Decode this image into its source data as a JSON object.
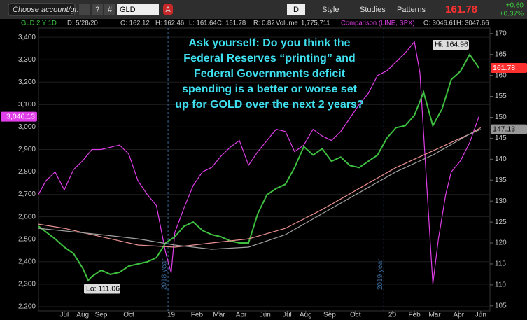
{
  "toolbar": {
    "account": "Choose account/gr...",
    "help": "?",
    "hash": "#",
    "symbol": "GLD",
    "alert": "A",
    "period": "D",
    "style": "Style",
    "studies": "Studies",
    "patterns": "Patterns",
    "last": "161.78",
    "change": "+0.60",
    "change_pct": "+0.37%"
  },
  "info_bar": [
    "GLD 2 Y 1D",
    "D: 5/28/20",
    "O: 162.12",
    "H: 162.46",
    "L: 161.64",
    "C: 161.78",
    "R: 0.82",
    "Volume",
    "1,775,711",
    "Comparison (LINE, SPX)",
    "O: 3046.61",
    "H: 3047.66"
  ],
  "chart_data": {
    "type": "line",
    "annotation": [
      "Ask yourself: Do you think the",
      "Federal Reserves “printing” and",
      "Federal Governments deficit",
      "spending is a better or worse set",
      "up for GOLD over the next 2 years?"
    ],
    "hi_label": "Hi: 164.96",
    "lo_label": "Lo: 111.06",
    "last_tag": "161.78",
    "ma_tag": "147.13",
    "spx_tag": "3,046.13",
    "year_lines": [
      {
        "x": 5.63,
        "label": "2018 year"
      },
      {
        "x": 17.34,
        "label": "2019 year"
      }
    ],
    "xlim": [
      -1.4,
      23.1
    ],
    "xticks": [
      {
        "value": 0,
        "label": "Jul"
      },
      {
        "value": 1,
        "label": "Aug"
      },
      {
        "value": 2,
        "label": "Sep"
      },
      {
        "value": 3.5,
        "label": "Oct"
      },
      {
        "value": 5.8,
        "label": "19"
      },
      {
        "value": 7.2,
        "label": "Feb"
      },
      {
        "value": 8.4,
        "label": "Mar"
      },
      {
        "value": 9.6,
        "label": "Apr"
      },
      {
        "value": 10.9,
        "label": "Jun"
      },
      {
        "value": 12.1,
        "label": "Jul"
      },
      {
        "value": 13.1,
        "label": "Aug"
      },
      {
        "value": 14.4,
        "label": "Sep"
      },
      {
        "value": 15.8,
        "label": "Oct"
      },
      {
        "value": 17.8,
        "label": "20"
      },
      {
        "value": 19,
        "label": "Feb"
      },
      {
        "value": 20.1,
        "label": "Mar"
      },
      {
        "value": 21.4,
        "label": "Apr"
      },
      {
        "value": 22.6,
        "label": "Jun"
      }
    ],
    "ylim": [
      2181,
      3441
    ],
    "yticks": [
      {
        "value": 2200,
        "label": "2,200"
      },
      {
        "value": 2300,
        "label": "2,300"
      },
      {
        "value": 2400,
        "label": "2,400"
      },
      {
        "value": 2500,
        "label": "2,500"
      },
      {
        "value": 2600,
        "label": "2,600"
      },
      {
        "value": 2700,
        "label": "2,700"
      },
      {
        "value": 2800,
        "label": "2,800"
      },
      {
        "value": 2900,
        "label": "2,900"
      },
      {
        "value": 3000,
        "label": "3,000"
      },
      {
        "value": 3100,
        "label": "3,100"
      },
      {
        "value": 3200,
        "label": "3,200"
      },
      {
        "value": 3300,
        "label": "3,300"
      },
      {
        "value": 3400,
        "label": "3,400"
      }
    ],
    "y2lim": [
      103.8,
      171.3
    ],
    "y2ticks": [
      105,
      110,
      115,
      120,
      125,
      130,
      135,
      140,
      145,
      150,
      155,
      160,
      165,
      170
    ],
    "grid": true,
    "series": [
      {
        "name": "SPX",
        "color": "#e03ee8",
        "x": [
          -1.4,
          -1,
          -0.5,
          0,
          0.5,
          1,
          1.5,
          2,
          2.5,
          3,
          3.5,
          4,
          4.5,
          5,
          5.5,
          5.8,
          6,
          6.5,
          7,
          7.5,
          8,
          8.5,
          9,
          9.5,
          10,
          10.5,
          11,
          11.5,
          12,
          12.5,
          13,
          13.5,
          14,
          14.5,
          15,
          15.5,
          16,
          16.5,
          17,
          17.5,
          18,
          18.5,
          19,
          19.3,
          19.7,
          20,
          20.3,
          20.7,
          21,
          21.5,
          22,
          22.5
        ],
        "values": [
          2700,
          2760,
          2800,
          2720,
          2810,
          2850,
          2900,
          2900,
          2910,
          2920,
          2880,
          2760,
          2700,
          2650,
          2440,
          2350,
          2530,
          2640,
          2740,
          2800,
          2820,
          2870,
          2910,
          2940,
          2830,
          2890,
          2940,
          2990,
          2980,
          2890,
          2920,
          2990,
          2960,
          2940,
          2980,
          3040,
          3100,
          3150,
          3230,
          3250,
          3290,
          3330,
          3380,
          3240,
          2700,
          2300,
          2500,
          2700,
          2800,
          2850,
          2930,
          3046.13
        ]
      },
      {
        "name": "GLD",
        "color": "#3fbf3f",
        "axis": "y2",
        "x": [
          -1.4,
          -0.5,
          0,
          0.5,
          1,
          1.3,
          1.5,
          2,
          2.5,
          3,
          3.5,
          4,
          4.5,
          5,
          5.5,
          6,
          6.5,
          7,
          7.5,
          8,
          8.5,
          9,
          9.5,
          10,
          10.5,
          11,
          11.5,
          12,
          12.5,
          13,
          13.5,
          14,
          14.5,
          15,
          15.5,
          16,
          16.5,
          17,
          17.5,
          18,
          18.5,
          19,
          19.5,
          20,
          20.5,
          21,
          21.5,
          22,
          22.5
        ],
        "values": [
          124,
          121,
          119,
          117.5,
          114,
          111.06,
          112,
          113.5,
          112.5,
          113,
          114.5,
          115,
          115.5,
          116.5,
          120,
          121.5,
          124,
          125,
          123,
          122,
          121.5,
          120.5,
          120,
          120,
          127,
          131.5,
          133,
          134,
          138,
          143,
          141,
          142.5,
          139.5,
          140.5,
          138.5,
          138,
          139.5,
          141,
          145,
          147.5,
          148,
          150.5,
          156,
          148,
          152,
          159,
          161,
          164.96,
          161.78
        ]
      },
      {
        "name": "MA 1",
        "color": "#e89090",
        "axis": "y2",
        "x": [
          -1.4,
          0,
          2,
          4,
          6,
          8,
          10,
          12,
          14,
          16,
          18,
          20,
          22,
          22.6
        ],
        "values": [
          124.5,
          123.5,
          121.5,
          119.5,
          119,
          120,
          121,
          123.5,
          128,
          133,
          138,
          142,
          146,
          147.5
        ]
      },
      {
        "name": "MA 2",
        "color": "#a0a0a0",
        "axis": "y2",
        "x": [
          -1.4,
          2,
          4,
          6,
          8,
          10,
          12,
          14,
          16,
          18,
          20,
          22,
          22.6
        ],
        "values": [
          123.5,
          122,
          121,
          119.5,
          118.5,
          119,
          122,
          127,
          132,
          137,
          141,
          146,
          147.13
        ]
      }
    ]
  }
}
